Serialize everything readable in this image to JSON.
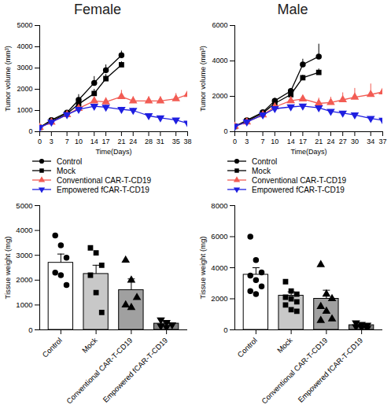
{
  "chart_data": [
    {
      "type": "line",
      "title": "Female",
      "xlabel": "Time(Days)",
      "ylabel": "Tumor volume (mm³)",
      "x": [
        0,
        3,
        7,
        10,
        14,
        17,
        21,
        24,
        28,
        31,
        35,
        38
      ],
      "xlim": [
        0,
        38
      ],
      "xticks": [
        0,
        3,
        7,
        10,
        14,
        17,
        21,
        24,
        28,
        31,
        35,
        38
      ],
      "ylim": [
        0,
        5000
      ],
      "yticks": [
        0,
        1000,
        2000,
        3000,
        4000,
        5000
      ],
      "series": [
        {
          "name": "Control",
          "color": "#000000",
          "marker": "circle",
          "values": [
            200,
            550,
            900,
            1500,
            2300,
            2900,
            3600,
            null,
            null,
            null,
            null,
            null
          ],
          "errors": [
            20,
            80,
            100,
            250,
            300,
            250,
            200,
            null,
            null,
            null,
            null,
            null
          ]
        },
        {
          "name": "Mock",
          "color": "#000000",
          "marker": "square",
          "values": [
            200,
            500,
            850,
            1300,
            1800,
            2500,
            3150,
            null,
            null,
            null,
            null,
            null
          ],
          "errors": [
            20,
            60,
            100,
            150,
            200,
            200,
            150,
            null,
            null,
            null,
            null,
            null
          ]
        },
        {
          "name": "Conventional CAR-T-CD19",
          "color": "#f25c54",
          "marker": "triangle",
          "values": [
            200,
            450,
            800,
            1100,
            1450,
            1400,
            1650,
            1450,
            1450,
            1450,
            1550,
            1750
          ],
          "errors": [
            20,
            50,
            80,
            100,
            200,
            200,
            300,
            200,
            200,
            200,
            250,
            400
          ]
        },
        {
          "name": "Empowered fCAR-T-CD19",
          "color": "#1f1fe0",
          "marker": "triangle-down",
          "values": [
            200,
            450,
            800,
            1050,
            1200,
            1150,
            1050,
            1000,
            750,
            650,
            550,
            400
          ],
          "errors": [
            20,
            40,
            60,
            80,
            100,
            100,
            100,
            100,
            80,
            60,
            50,
            50
          ]
        }
      ]
    },
    {
      "type": "line",
      "title": "Male",
      "xlabel": "Time(Days)",
      "ylabel": "Tumor volume (mm³)",
      "x": [
        0,
        3,
        7,
        10,
        14,
        17,
        21,
        24,
        27,
        30,
        34,
        37
      ],
      "xlim": [
        0,
        37
      ],
      "xticks": [
        0,
        3,
        7,
        10,
        14,
        17,
        21,
        24,
        27,
        30,
        34,
        37
      ],
      "ylim": [
        0,
        6000
      ],
      "yticks": [
        0,
        2000,
        4000,
        6000
      ],
      "series": [
        {
          "name": "Control",
          "color": "#000000",
          "marker": "circle",
          "values": [
            300,
            650,
            1100,
            1750,
            2300,
            3800,
            4250,
            null,
            null,
            null,
            null,
            null
          ],
          "errors": [
            30,
            80,
            100,
            150,
            150,
            300,
            700,
            null,
            null,
            null,
            null,
            null
          ]
        },
        {
          "name": "Mock",
          "color": "#000000",
          "marker": "square",
          "values": [
            300,
            600,
            1050,
            1600,
            2100,
            3050,
            3350,
            null,
            null,
            null,
            null,
            null
          ],
          "errors": [
            30,
            60,
            100,
            120,
            150,
            150,
            200,
            null,
            null,
            null,
            null,
            null
          ]
        },
        {
          "name": "Conventional CAR-T-CD19",
          "color": "#f25c54",
          "marker": "triangle",
          "values": [
            300,
            550,
            950,
            1400,
            1750,
            1850,
            1600,
            1650,
            1800,
            1950,
            2100,
            2250
          ],
          "errors": [
            30,
            60,
            80,
            100,
            150,
            200,
            300,
            300,
            400,
            500,
            600,
            650
          ]
        },
        {
          "name": "Empowered fCAR-T-CD19",
          "color": "#1f1fe0",
          "marker": "triangle-down",
          "values": [
            300,
            550,
            950,
            1300,
            1400,
            1450,
            1350,
            1150,
            1050,
            950,
            750,
            650
          ],
          "errors": [
            30,
            50,
            80,
            100,
            100,
            100,
            100,
            80,
            80,
            80,
            80,
            70
          ]
        }
      ]
    },
    {
      "type": "bar",
      "ylabel": "Tissue weight (mg)",
      "categories": [
        "Control",
        "Mock",
        "Conventional CAR-T-CD19",
        "Empowered fCAR-T-CD19"
      ],
      "values": [
        2700,
        2250,
        1600,
        250
      ],
      "errors": [
        350,
        350,
        450,
        70
      ],
      "colors": [
        "#ffffff",
        "#c8c8c8",
        "#a0a0a0",
        "#808080"
      ],
      "ylim": [
        0,
        5000
      ],
      "yticks": [
        0,
        1000,
        2000,
        3000,
        4000,
        5000
      ],
      "points": [
        {
          "marker": "circle",
          "values": [
            3800,
            3400,
            2900,
            2300,
            2200,
            1800
          ]
        },
        {
          "marker": "square",
          "values": [
            3300,
            3100,
            2600,
            2200,
            1500,
            700
          ]
        },
        {
          "marker": "triangle",
          "values": [
            2800,
            2000,
            1300,
            1000,
            900
          ]
        },
        {
          "marker": "triangle-down",
          "values": [
            400,
            300,
            200,
            150,
            100
          ]
        }
      ]
    },
    {
      "type": "bar",
      "ylabel": "Tissue weight (mg)",
      "categories": [
        "Control",
        "Mock",
        "Conventional CAR-T-CD19",
        "Empowered fCAR-T-CD19"
      ],
      "values": [
        3550,
        2200,
        2000,
        300
      ],
      "errors": [
        450,
        250,
        550,
        60
      ],
      "colors": [
        "#ffffff",
        "#c8c8c8",
        "#a0a0a0",
        "#808080"
      ],
      "ylim": [
        0,
        8000
      ],
      "yticks": [
        0,
        2000,
        4000,
        6000,
        8000
      ],
      "points": [
        {
          "marker": "circle",
          "values": [
            6000,
            4500,
            3700,
            3500,
            3200,
            2800,
            2500,
            2300
          ]
        },
        {
          "marker": "square",
          "values": [
            3100,
            2500,
            2300,
            2100,
            2000,
            1800,
            1600,
            1300,
            1200
          ]
        },
        {
          "marker": "triangle",
          "values": [
            4200,
            2300,
            2000,
            1500,
            1200,
            700,
            600
          ]
        },
        {
          "marker": "triangle-down",
          "values": [
            450,
            350,
            300,
            200,
            150,
            100
          ]
        }
      ]
    }
  ]
}
